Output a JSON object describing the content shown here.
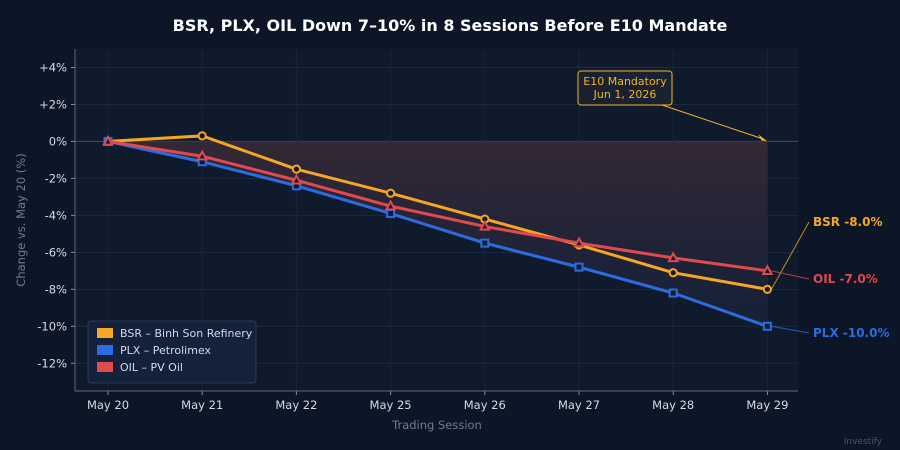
{
  "chart_data": {
    "type": "line",
    "title": "BSR, PLX, OIL Down 7–10% in 8 Sessions Before E10 Mandate",
    "xlabel": "Trading Session",
    "ylabel": "Change vs. May 20 (%)",
    "categories": [
      "May 20",
      "May 21",
      "May 22",
      "May 25",
      "May 26",
      "May 27",
      "May 28",
      "May 29"
    ],
    "ylim": [
      -13.5,
      5
    ],
    "yticks": [
      4,
      2,
      0,
      -2,
      -4,
      -6,
      -8,
      -10,
      -12
    ],
    "ytick_labels": [
      "+4%",
      "+2%",
      "0%",
      "-2%",
      "-4%",
      "-6%",
      "-8%",
      "-10%",
      "-12%"
    ],
    "grid": true,
    "legend_position": "bottom-left",
    "series": [
      {
        "name": "BSR – Binh Son Refinery",
        "short": "BSR",
        "end_label": "-8.0%",
        "color": "#f5a623",
        "marker": "circle",
        "values": [
          0,
          0.3,
          -1.5,
          -2.8,
          -4.2,
          -5.6,
          -7.1,
          -8.0
        ]
      },
      {
        "name": "PLX – Petrolimex",
        "short": "PLX",
        "end_label": "-10.0%",
        "color": "#2b6de0",
        "marker": "square",
        "values": [
          0,
          -1.1,
          -2.4,
          -3.9,
          -5.5,
          -6.8,
          -8.2,
          -10.0
        ]
      },
      {
        "name": "OIL – PV Oil",
        "short": "OIL",
        "end_label": "-7.0%",
        "color": "#e04a4f",
        "marker": "triangle",
        "values": [
          0,
          -0.8,
          -2.1,
          -3.5,
          -4.6,
          -5.5,
          -6.3,
          -7.0
        ]
      }
    ],
    "annotation": {
      "lines": [
        "E10 Mandatory",
        "Jun 1, 2026"
      ],
      "color": "#f0b429",
      "target_index": 7,
      "target_value": 0
    },
    "watermark": "Investify"
  }
}
